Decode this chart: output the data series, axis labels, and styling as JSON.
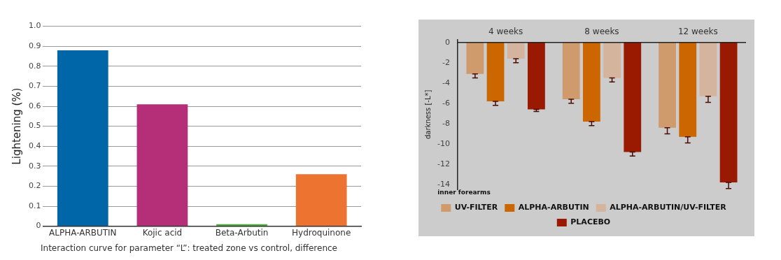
{
  "chart_data": [
    {
      "type": "bar",
      "categories": [
        "ALPHA-ARBUTIN",
        "Kojic acid",
        "Beta-Arbutin",
        "Hydroquinone"
      ],
      "values": [
        0.88,
        0.61,
        0.01,
        0.26
      ],
      "colors": [
        "#0066a8",
        "#b52e78",
        "#4caf3a",
        "#ed7330"
      ],
      "ylabel": "Lightening (%)",
      "ylim": [
        0,
        1
      ],
      "yticks": [
        0,
        0.1,
        0.2,
        0.3,
        0.4,
        0.5,
        0.6,
        0.7,
        0.8,
        0.9,
        {
          "value": 1,
          "label": "1.0"
        }
      ],
      "grid": "y",
      "legend": false,
      "annotations": [
        "Interaction curve for parameter “L”: treated zone vs control, difference"
      ]
    },
    {
      "type": "bar",
      "categories": [
        "4 weeks",
        "8 weeks",
        "12 weeks"
      ],
      "ylabel": "darkness [-L*]",
      "ylim": [
        -14.5,
        0.3
      ],
      "yticks": [
        0,
        -2,
        -4,
        -6,
        -8,
        -10,
        -12,
        -14
      ],
      "grid": false,
      "legend": "bottom",
      "legend_title": "inner forearms",
      "series": [
        {
          "name": "UV-FILTER",
          "color": "#cf9a6c",
          "values": [
            -3.1,
            -5.6,
            -8.4
          ],
          "errors": [
            [
              -3.5,
              -3.1
            ],
            [
              -6.0,
              -5.6
            ],
            [
              -9.0,
              -8.4
            ]
          ]
        },
        {
          "name": "ALPHA-ARBUTIN",
          "color": "#cc6600",
          "values": [
            -5.8,
            -7.8,
            -9.3
          ],
          "errors": [
            [
              -6.2,
              -5.8
            ],
            [
              -8.2,
              -7.8
            ],
            [
              -9.9,
              -9.3
            ]
          ]
        },
        {
          "name": "ALPHA-ARBUTIN/UV-FILTER",
          "color": "#d4b49c",
          "values": [
            -1.6,
            -3.5,
            -5.3
          ],
          "errors": [
            [
              -2.0,
              -1.6
            ],
            [
              -3.9,
              -3.5
            ],
            [
              -5.9,
              -5.3
            ]
          ]
        },
        {
          "name": "PLACEBO",
          "color": "#991a00",
          "values": [
            -6.6,
            -10.8,
            -13.8
          ],
          "errors": [
            [
              -6.8,
              -6.6
            ],
            [
              -11.2,
              -10.8
            ],
            [
              -14.4,
              -13.8
            ]
          ]
        }
      ]
    }
  ]
}
